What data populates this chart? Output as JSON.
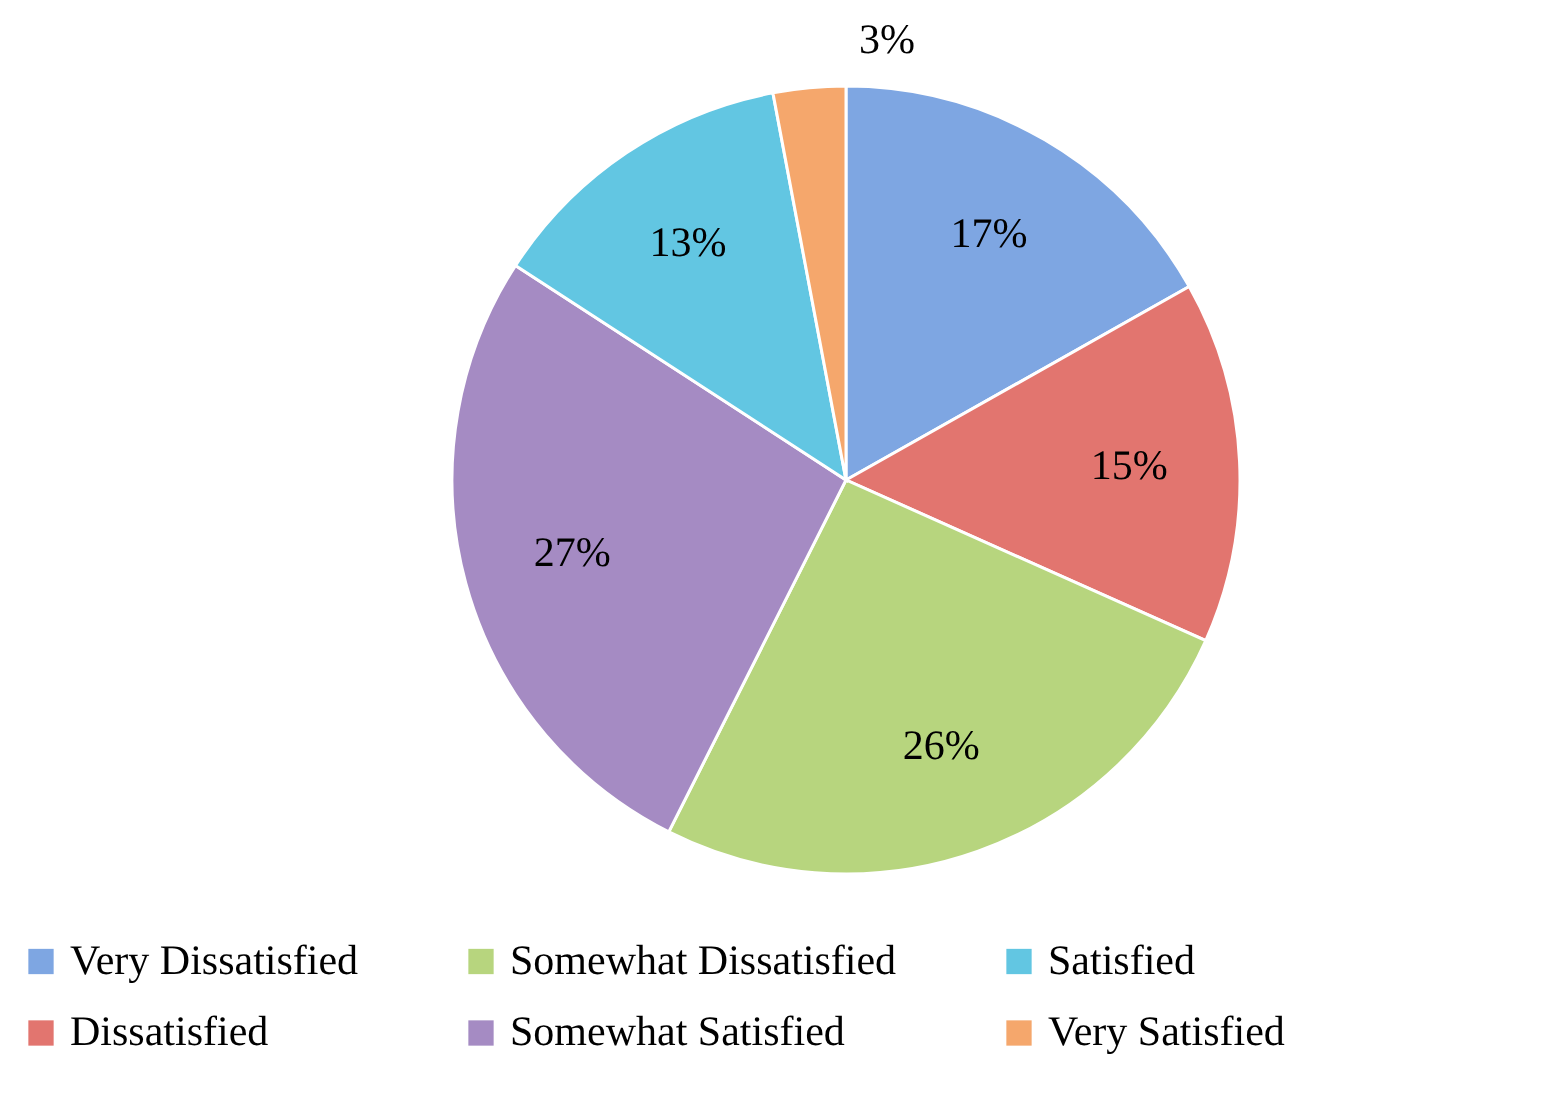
{
  "chart_data": {
    "type": "pie",
    "categories": [
      "Very Dissatisfied",
      "Dissatisfied",
      "Somewhat Dissatisfied",
      "Somewhat Satisfied",
      "Satisfied",
      "Very Satisfied"
    ],
    "values": [
      17,
      15,
      26,
      27,
      13,
      3
    ],
    "colors": [
      "#7ea6e2",
      "#e2756f",
      "#b7d57e",
      "#a58bc3",
      "#62c6e2",
      "#f5a76c"
    ],
    "value_labels": [
      "17%",
      "15%",
      "26%",
      "27%",
      "13%",
      "3%"
    ],
    "legend": "bottom"
  }
}
